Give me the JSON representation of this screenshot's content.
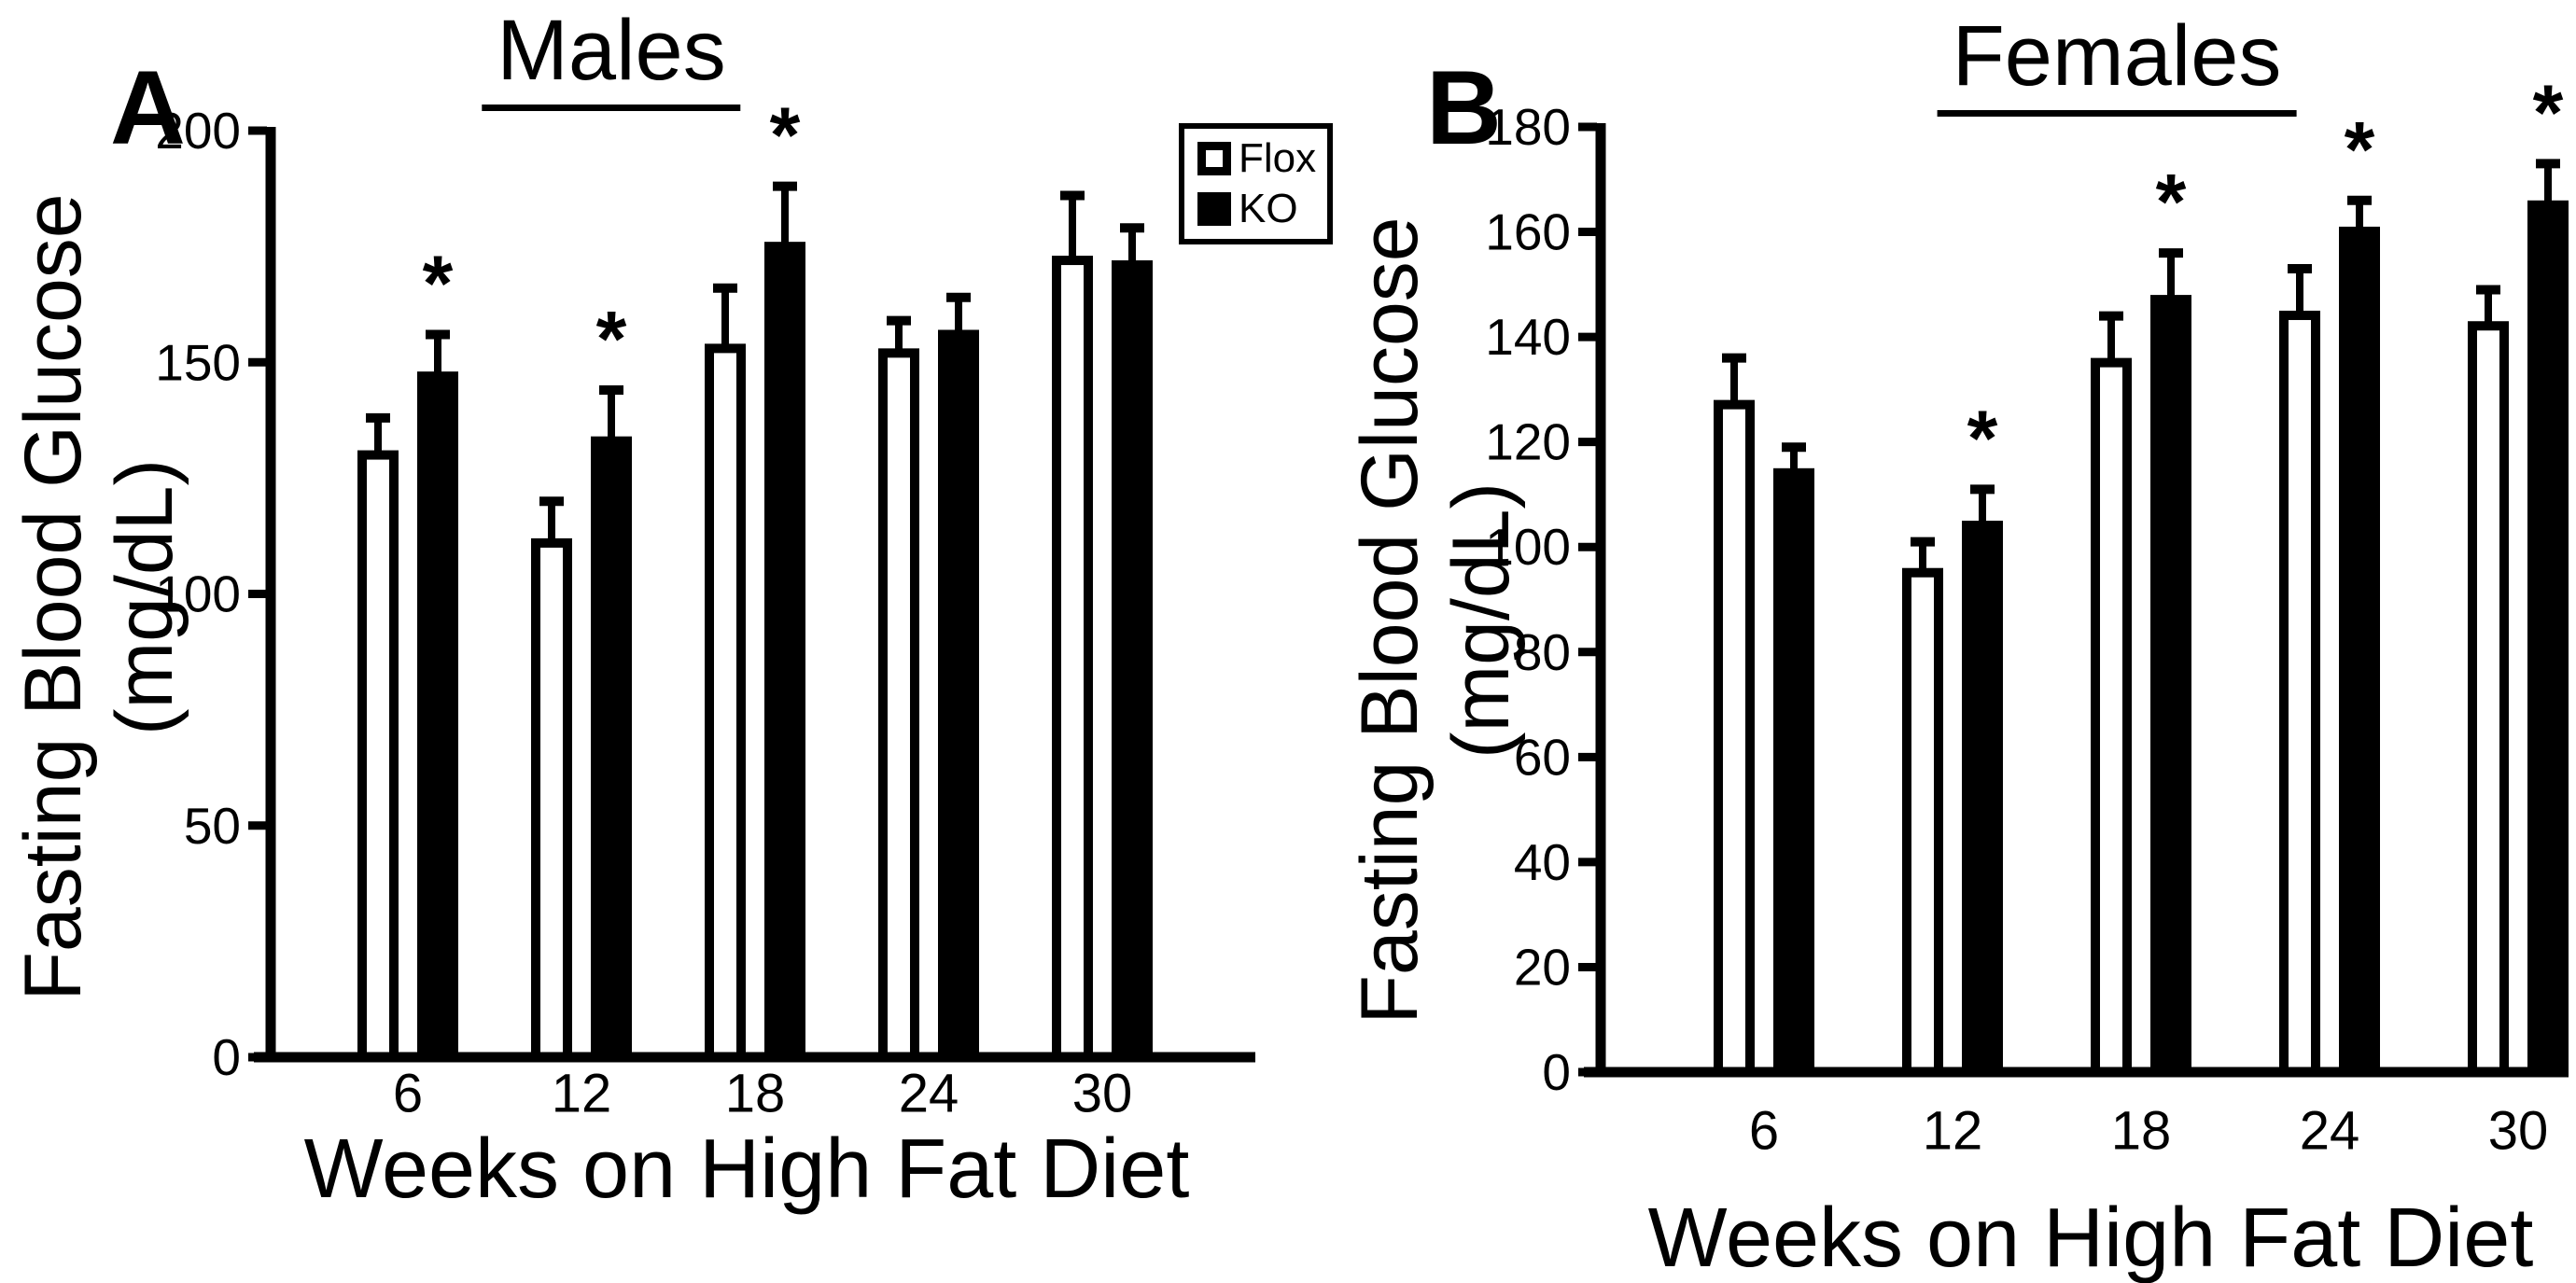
{
  "figure": {
    "background_color": "#ffffff",
    "foreground_color": "#000000"
  },
  "legend": {
    "items": [
      {
        "label": "Flox",
        "marker": "open-square-icon"
      },
      {
        "label": "KO",
        "marker": "filled-square-icon"
      }
    ]
  },
  "annotations": {
    "significance_symbol": "*"
  },
  "chart_data": [
    {
      "type": "bar",
      "panel_label": "A",
      "title": "Males",
      "xlabel": "Weeks on High Fat Diet",
      "ylabel_line1": "Fasting Blood Glucose",
      "ylabel_line2": "(mg/dL)",
      "categories": [
        "6",
        "12",
        "18",
        "24",
        "30"
      ],
      "ylim": [
        0,
        200
      ],
      "yticks": [
        0,
        50,
        100,
        150,
        200
      ],
      "grid": false,
      "legend_position": "top-right-inside",
      "series": [
        {
          "name": "Flox",
          "style": "open",
          "values": [
            131,
            112,
            154,
            153,
            173
          ],
          "errors": [
            7,
            8,
            12,
            6,
            13
          ],
          "significant": [
            false,
            false,
            false,
            false,
            false
          ]
        },
        {
          "name": "KO",
          "style": "filled",
          "values": [
            148,
            134,
            176,
            157,
            172
          ],
          "errors": [
            8,
            10,
            12,
            7,
            7
          ],
          "significant": [
            true,
            true,
            true,
            false,
            false
          ]
        }
      ]
    },
    {
      "type": "bar",
      "panel_label": "B",
      "title": "Females",
      "xlabel": "Weeks on High Fat Diet",
      "ylabel_line1": "Fasting Blood Glucose",
      "ylabel_line2": "(mg/dL)",
      "categories": [
        "6",
        "12",
        "18",
        "24",
        "30"
      ],
      "ylim": [
        0,
        180
      ],
      "yticks": [
        0,
        20,
        40,
        60,
        80,
        100,
        120,
        140,
        160,
        180
      ],
      "grid": false,
      "legend_position": "none",
      "series": [
        {
          "name": "Flox",
          "style": "open",
          "values": [
            128,
            96,
            136,
            145,
            143
          ],
          "errors": [
            8,
            5,
            8,
            8,
            6
          ],
          "significant": [
            false,
            false,
            false,
            false,
            false
          ]
        },
        {
          "name": "KO",
          "style": "filled",
          "values": [
            115,
            105,
            148,
            161,
            166
          ],
          "errors": [
            4,
            6,
            8,
            5,
            7
          ],
          "significant": [
            false,
            true,
            true,
            true,
            true
          ]
        }
      ]
    }
  ]
}
